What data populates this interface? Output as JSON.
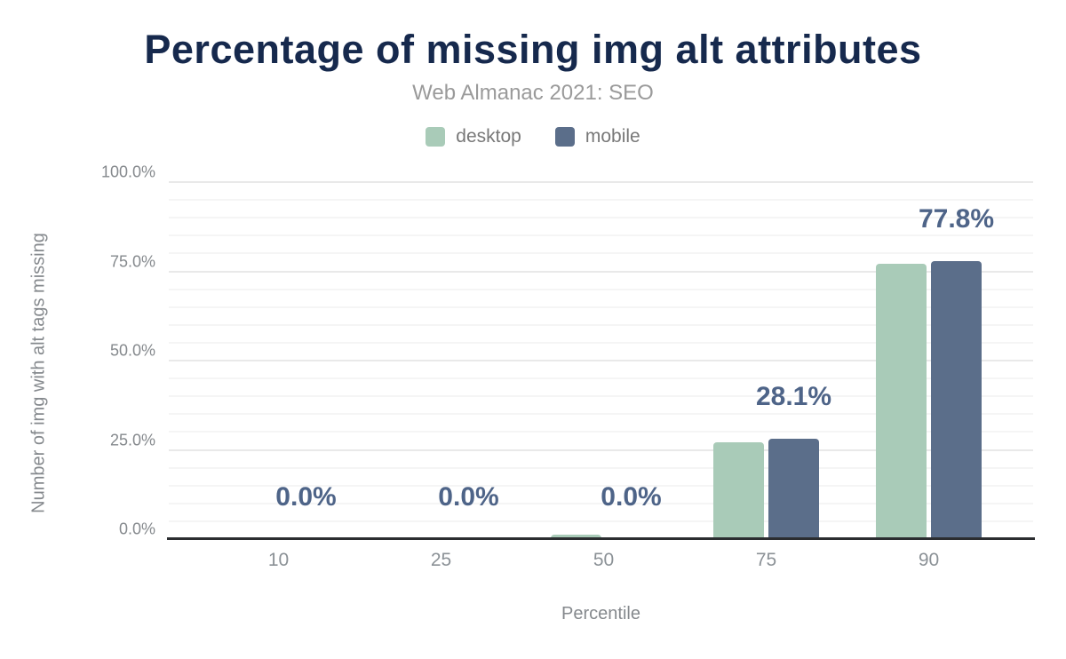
{
  "chart_data": {
    "type": "bar",
    "title": "Percentage of missing img alt attributes",
    "subtitle": "Web Almanac 2021: SEO",
    "xlabel": "Percentile",
    "ylabel": "Number of img with alt tags missing",
    "categories": [
      "10",
      "25",
      "50",
      "75",
      "90"
    ],
    "series": [
      {
        "name": "desktop",
        "color": "#a9cbb8",
        "values": [
          0.0,
          0.0,
          1.2,
          27.0,
          77.2
        ]
      },
      {
        "name": "mobile",
        "color": "#5b6e8a",
        "values": [
          0.0,
          0.0,
          0.0,
          28.1,
          77.8
        ]
      }
    ],
    "data_labels": {
      "series": "mobile",
      "values": [
        "0.0%",
        "0.0%",
        "0.0%",
        "28.1%",
        "77.8%"
      ]
    },
    "ylim": [
      0,
      100
    ],
    "yticks": {
      "values": [
        0,
        25,
        50,
        75,
        100
      ],
      "labels": [
        "0.0%",
        "25.0%",
        "50.0%",
        "75.0%",
        "100.0%"
      ]
    },
    "grid": {
      "minor_step": 5,
      "major_step": 25
    },
    "legend_position": "top"
  },
  "legend": {
    "items": [
      {
        "label": "desktop",
        "color": "#a9cbb8"
      },
      {
        "label": "mobile",
        "color": "#5b6e8a"
      }
    ]
  },
  "colors": {
    "title": "#16294d",
    "subtitle": "#9a9a9a",
    "legend_text": "#787878",
    "axis_text": "#85898d",
    "tick_text": "#8b9196",
    "data_label": "#4e6488",
    "axis_line": "#2b2d30",
    "grid_minor": "#f5f5f5",
    "grid_major": "#e9e9e9",
    "background": "#ffffff"
  }
}
